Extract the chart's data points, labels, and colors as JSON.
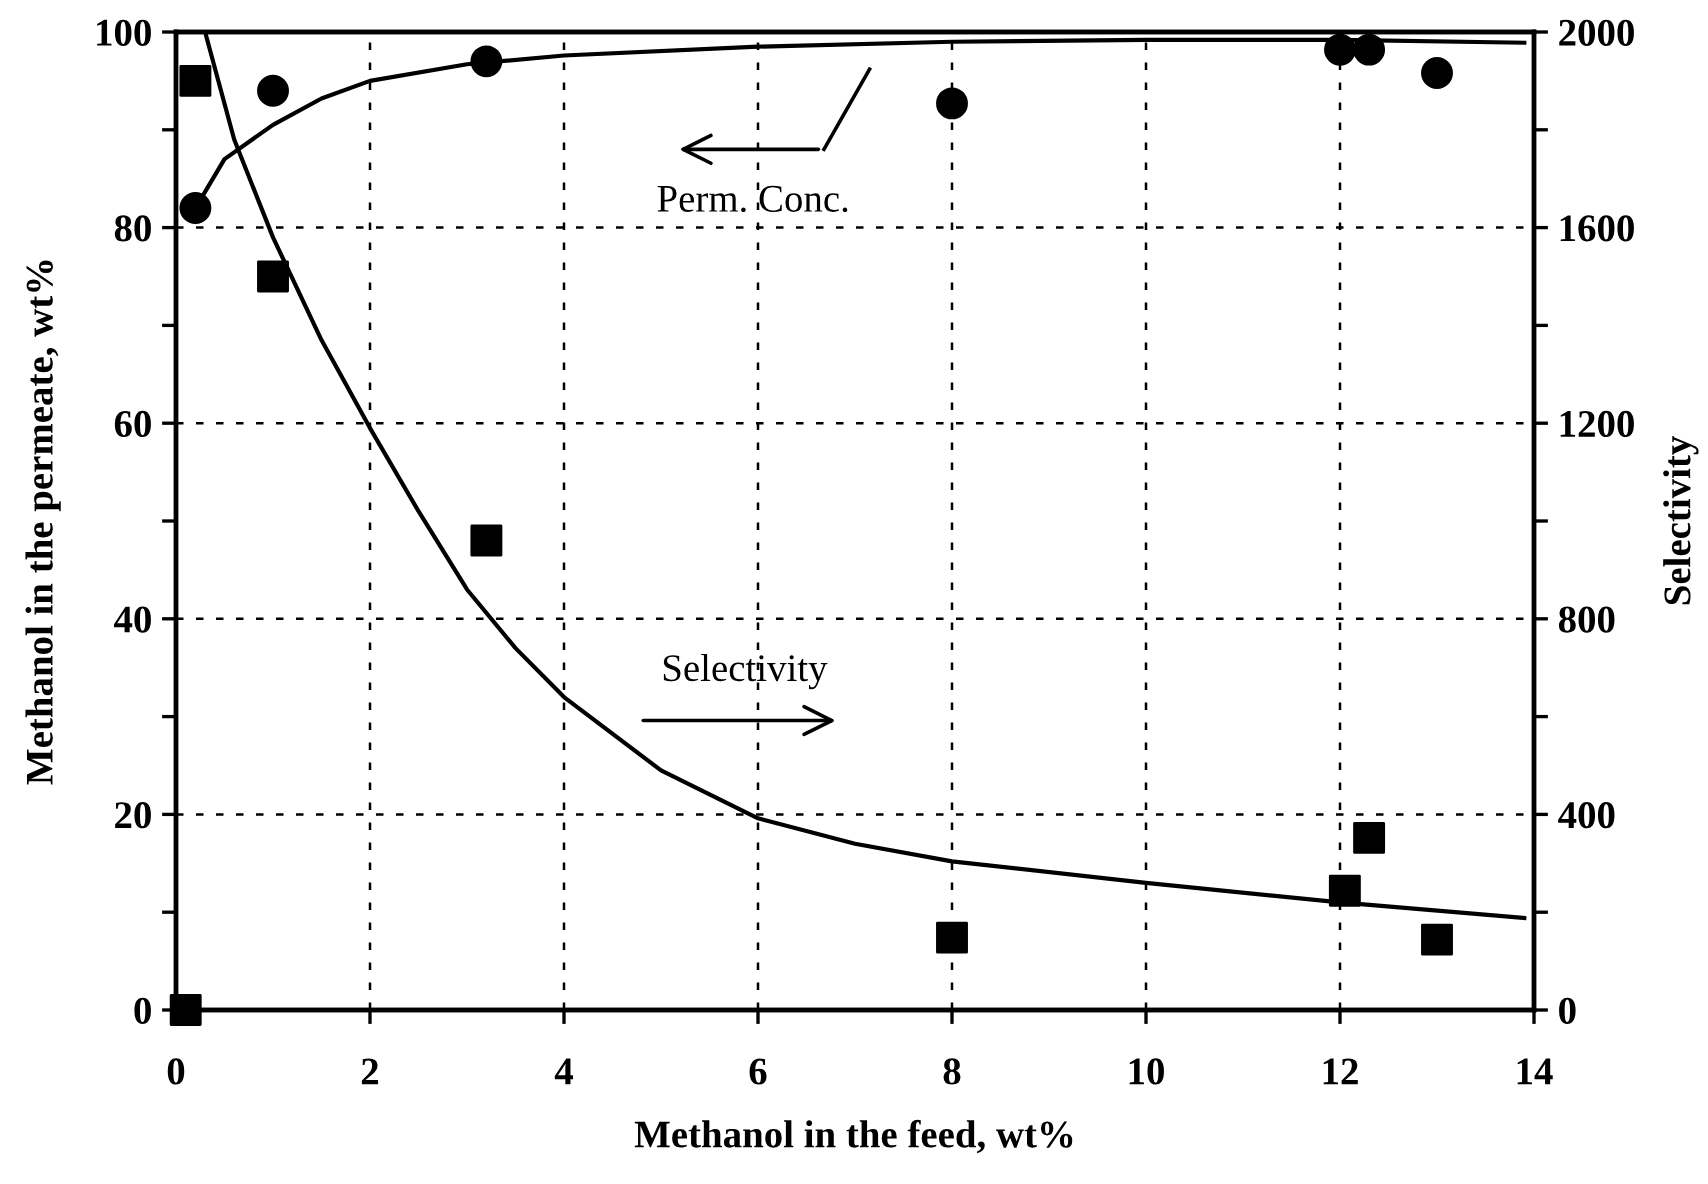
{
  "chart_data": {
    "type": "scatter",
    "xlabel": "Methanol in the feed, wt%",
    "ylabel": "Methanol in the permeate, wt%",
    "y2label": "Selectivity",
    "xlim": [
      0,
      14
    ],
    "xticks": [
      0,
      2,
      4,
      6,
      8,
      10,
      12,
      14
    ],
    "ylim": [
      0,
      100
    ],
    "yticks": [
      0,
      {
        "value": 10,
        "label": null
      },
      20,
      {
        "value": 30,
        "label": null
      },
      40,
      {
        "value": 50,
        "label": null
      },
      60,
      {
        "value": 70,
        "label": null
      },
      80,
      {
        "value": 90,
        "label": null
      },
      100
    ],
    "y2lim": [
      0,
      2000
    ],
    "y2ticks": [
      0,
      {
        "value": 200,
        "label": null
      },
      400,
      {
        "value": 600,
        "label": null
      },
      800,
      {
        "value": 1000,
        "label": null
      },
      1200,
      {
        "value": 1400,
        "label": null
      },
      1600,
      {
        "value": 1800,
        "label": null
      },
      2000
    ],
    "grid": true,
    "series": [
      {
        "marker": "circle",
        "color": "#000000",
        "x": [
          0.2,
          1.0,
          3.2,
          8.0,
          12.0,
          12.3,
          13.0
        ],
        "values": [
          82,
          94,
          97,
          92.7,
          98.2,
          98.2,
          95.8
        ]
      },
      {
        "type": "line",
        "marker": "none",
        "color": "#000000",
        "x": [
          0.2,
          0.5,
          1,
          1.5,
          2,
          3,
          4,
          6,
          8,
          10,
          12,
          13.9
        ],
        "values": [
          82,
          87,
          90.5,
          93.2,
          95,
          96.7,
          97.6,
          98.5,
          99,
          99.2,
          99.2,
          98.9
        ]
      },
      {
        "marker": "square",
        "color": "#000000",
        "axis": "y2",
        "x": [
          0.1,
          0.2,
          1.0,
          3.2,
          8.0,
          12.05,
          12.3,
          13.0
        ],
        "values": [
          0,
          1900,
          1500,
          960,
          148,
          244,
          352,
          144
        ]
      },
      {
        "type": "line",
        "marker": "none",
        "color": "#000000",
        "axis": "y2",
        "x": [
          0.3,
          0.6,
          1,
          1.5,
          2,
          2.5,
          3,
          3.5,
          4,
          5,
          6,
          7,
          8,
          10,
          12,
          13.9
        ],
        "values": [
          2000,
          1780,
          1580,
          1370,
          1190,
          1020,
          860,
          740,
          640,
          490,
          392,
          340,
          304,
          260,
          220,
          188
        ]
      }
    ],
    "annotations": [
      "Perm. Conc.",
      "Selectivity"
    ]
  }
}
